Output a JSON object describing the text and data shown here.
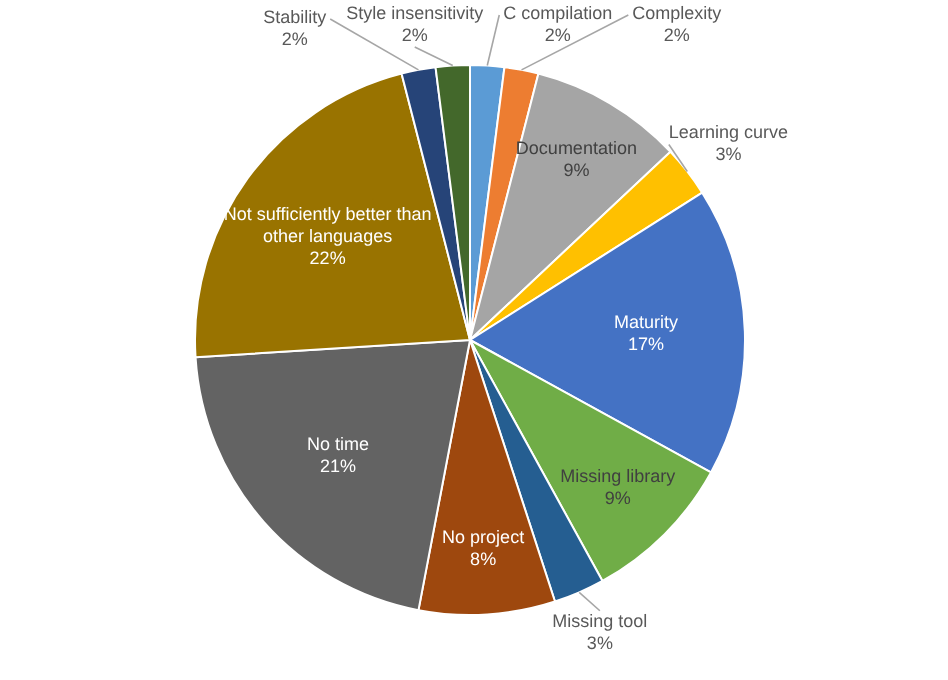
{
  "chart_data": {
    "type": "pie",
    "categories": [
      "C compilation",
      "Complexity",
      "Documentation",
      "Learning curve",
      "Maturity",
      "Missing library",
      "Missing tool",
      "No project",
      "No time",
      "Not sufficiently better than other languages",
      "Stability",
      "Style insensitivity"
    ],
    "values": [
      2,
      2,
      9,
      3,
      17,
      9,
      3,
      8,
      21,
      22,
      2,
      2
    ],
    "value_labels": [
      "2%",
      "2%",
      "9%",
      "3%",
      "17%",
      "9%",
      "3%",
      "8%",
      "21%",
      "22%",
      "2%",
      "2%"
    ],
    "colors": [
      "#5b9bd5",
      "#ed7d31",
      "#a5a5a5",
      "#ffc000",
      "#4472c4",
      "#70ad47",
      "#255e91",
      "#9e480e",
      "#636363",
      "#997300",
      "#264478",
      "#43682b"
    ],
    "legend": false
  }
}
